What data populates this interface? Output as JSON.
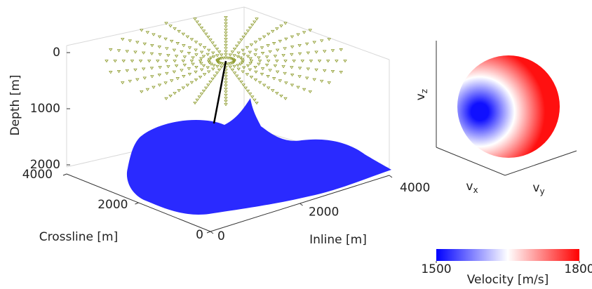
{
  "chart_data": [
    {
      "type": "surface3d",
      "zlabel": "Depth  [m]",
      "zlim": [
        0,
        2000
      ],
      "zticks": [
        0,
        1000,
        2000
      ],
      "ylabel": "Crossline [m]",
      "ylim": [
        0,
        4000
      ],
      "yticks": [
        0,
        2000,
        4000
      ],
      "xlabel": "Inline  [m]",
      "xlim": [
        0,
        4000
      ],
      "xticks": [
        0,
        2000,
        4000
      ],
      "surface_color": "#2a2aff",
      "receiver_color": "#8c9a2a",
      "well_color": "#000000"
    },
    {
      "type": "sphere",
      "zlabel": {
        "text": "v",
        "sub": "z"
      },
      "xlabel": {
        "text": "v",
        "sub": "x"
      },
      "ylabel": {
        "text": "v",
        "sub": "y"
      },
      "colors": [
        "#1010ff",
        "#ffffff",
        "#ff1010"
      ]
    },
    {
      "type": "colorbar",
      "label": "Velocity [m/s]",
      "lim": [
        1500,
        1800
      ],
      "ticks": [
        1500,
        1800
      ],
      "colors": [
        "#0000ff",
        "#ffffff",
        "#ff0000"
      ]
    }
  ]
}
